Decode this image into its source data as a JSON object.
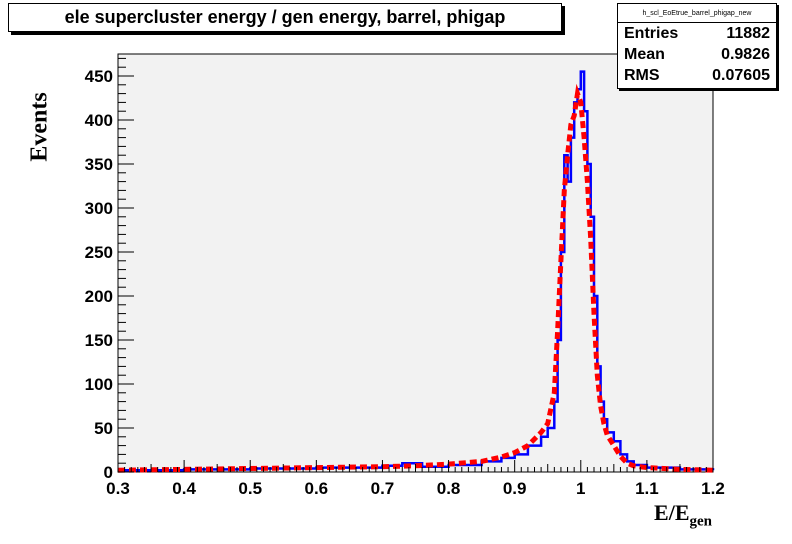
{
  "chart_data": {
    "type": "histogram",
    "title": "ele supercluster energy / gen energy, barrel, phigap",
    "xlabel": "E/E",
    "xlabel_sub": "gen",
    "ylabel": "Events",
    "xlim": [
      0.3,
      1.2
    ],
    "ylim": [
      0,
      475
    ],
    "x_ticks": [
      "0.3",
      "0.4",
      "0.5",
      "0.6",
      "0.7",
      "0.8",
      "0.9",
      "1",
      "1.1",
      "1.2"
    ],
    "y_ticks": [
      "0",
      "50",
      "100",
      "150",
      "200",
      "250",
      "300",
      "350",
      "400",
      "450"
    ],
    "grid": false,
    "stats": {
      "name": "h_scl_EoEtrue_barrel_phigap_new",
      "entries_label": "Entries",
      "entries": "11882",
      "mean_label": "Mean",
      "mean": "0.9826",
      "rms_label": "RMS",
      "rms": "0.07605"
    },
    "series": [
      {
        "color": "#0000ff",
        "style": "step",
        "points": [
          [
            0.3,
            2
          ],
          [
            0.4,
            3
          ],
          [
            0.5,
            4
          ],
          [
            0.6,
            5
          ],
          [
            0.7,
            7
          ],
          [
            0.73,
            10
          ],
          [
            0.76,
            6
          ],
          [
            0.8,
            8
          ],
          [
            0.85,
            12
          ],
          [
            0.88,
            16
          ],
          [
            0.9,
            20
          ],
          [
            0.92,
            30
          ],
          [
            0.94,
            40
          ],
          [
            0.95,
            50
          ],
          [
            0.96,
            80
          ],
          [
            0.965,
            150
          ],
          [
            0.97,
            250
          ],
          [
            0.975,
            360
          ],
          [
            0.98,
            330
          ],
          [
            0.985,
            380
          ],
          [
            0.99,
            420
          ],
          [
            0.995,
            435
          ],
          [
            1.0,
            455
          ],
          [
            1.005,
            410
          ],
          [
            1.01,
            350
          ],
          [
            1.015,
            290
          ],
          [
            1.02,
            200
          ],
          [
            1.025,
            120
          ],
          [
            1.03,
            80
          ],
          [
            1.035,
            60
          ],
          [
            1.04,
            45
          ],
          [
            1.05,
            35
          ],
          [
            1.06,
            20
          ],
          [
            1.07,
            12
          ],
          [
            1.08,
            8
          ],
          [
            1.1,
            5
          ],
          [
            1.15,
            3
          ],
          [
            1.2,
            2
          ]
        ]
      },
      {
        "color": "#ff0000",
        "style": "dashed",
        "points": [
          [
            0.3,
            2
          ],
          [
            0.4,
            3
          ],
          [
            0.5,
            4
          ],
          [
            0.6,
            5
          ],
          [
            0.7,
            6
          ],
          [
            0.75,
            7
          ],
          [
            0.8,
            9
          ],
          [
            0.85,
            12
          ],
          [
            0.88,
            17
          ],
          [
            0.9,
            22
          ],
          [
            0.92,
            30
          ],
          [
            0.94,
            45
          ],
          [
            0.95,
            55
          ],
          [
            0.96,
            90
          ],
          [
            0.965,
            160
          ],
          [
            0.97,
            240
          ],
          [
            0.975,
            320
          ],
          [
            0.98,
            360
          ],
          [
            0.985,
            395
          ],
          [
            0.99,
            405
          ],
          [
            0.995,
            430
          ],
          [
            1.0,
            420
          ],
          [
            1.005,
            380
          ],
          [
            1.01,
            330
          ],
          [
            1.015,
            265
          ],
          [
            1.02,
            180
          ],
          [
            1.025,
            110
          ],
          [
            1.03,
            75
          ],
          [
            1.035,
            55
          ],
          [
            1.04,
            42
          ],
          [
            1.05,
            30
          ],
          [
            1.06,
            18
          ],
          [
            1.07,
            10
          ],
          [
            1.08,
            7
          ],
          [
            1.1,
            5
          ],
          [
            1.15,
            3
          ],
          [
            1.2,
            2
          ]
        ]
      }
    ]
  }
}
